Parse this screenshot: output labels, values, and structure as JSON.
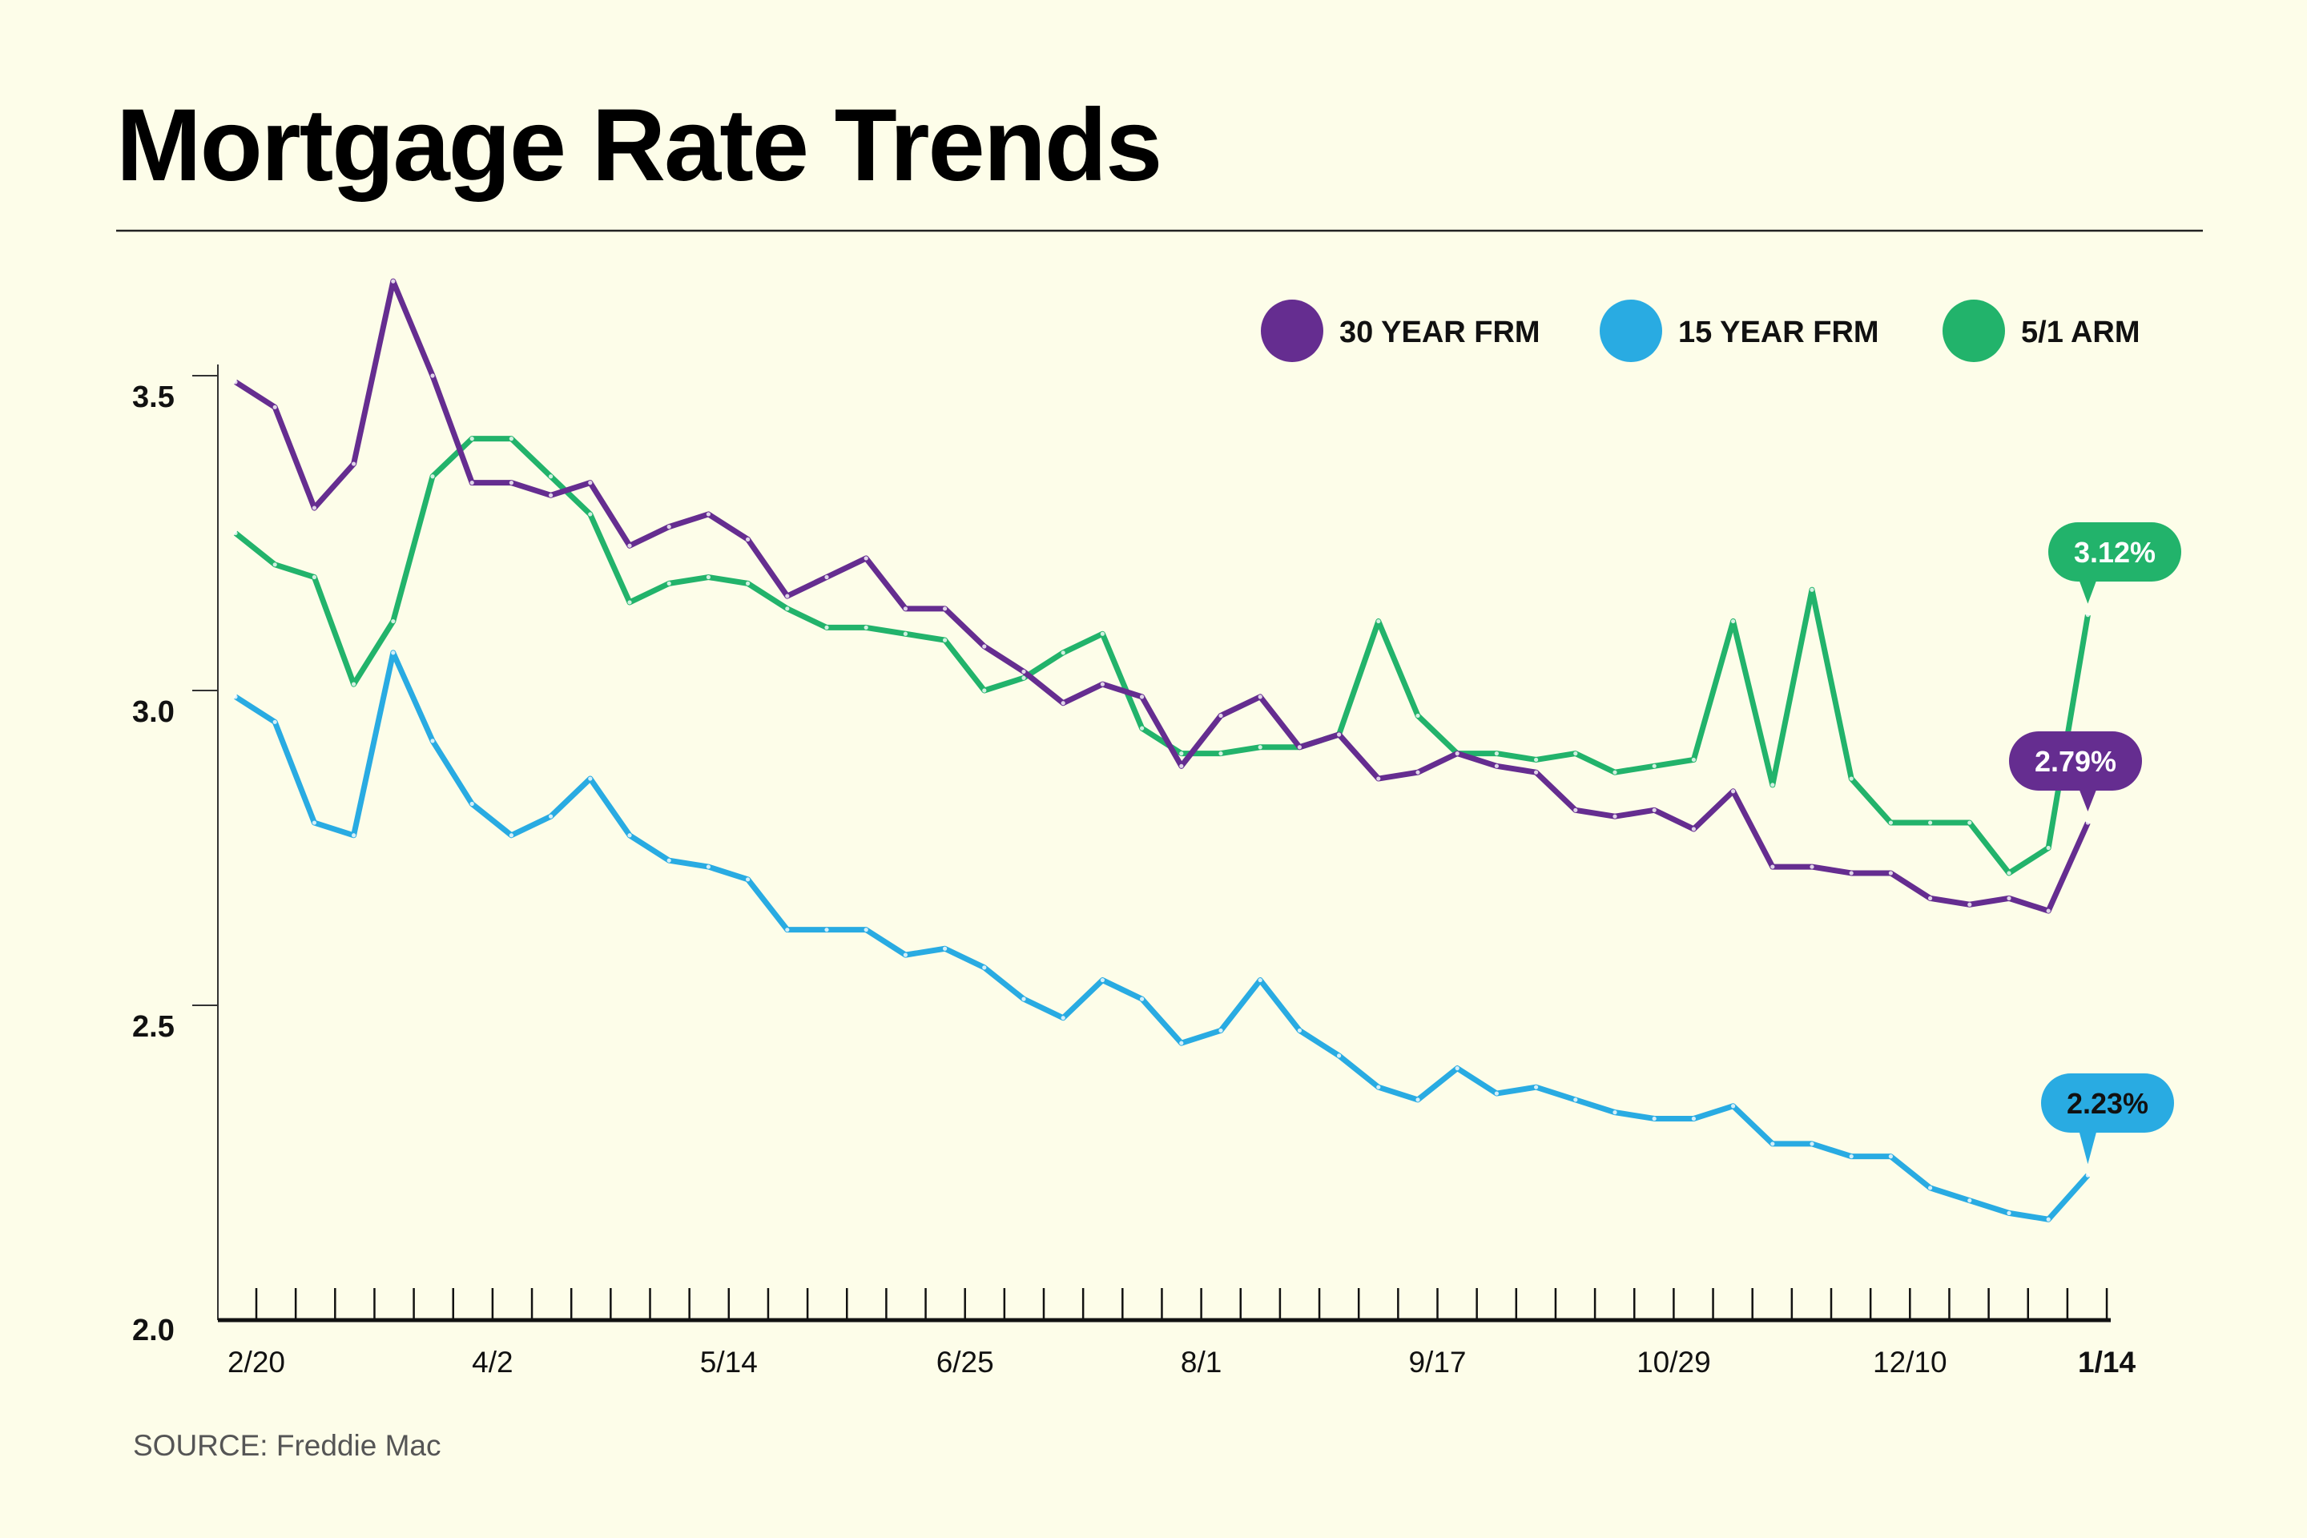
{
  "chart_data": {
    "type": "line",
    "title": "Mortgage Rate Trends",
    "source": "SOURCE: Freddie Mac",
    "xlabel": "",
    "ylabel": "",
    "ylim": [
      2.0,
      3.7
    ],
    "yticks": [
      "2.0",
      "2.5",
      "3.0",
      "3.5"
    ],
    "x_tick_labels": [
      {
        "label": "2/20",
        "week": 0
      },
      {
        "label": "4/2",
        "week": 6
      },
      {
        "label": "5/14",
        "week": 12
      },
      {
        "label": "6/25",
        "week": 18
      },
      {
        "label": "8/1",
        "week": 24
      },
      {
        "label": "9/17",
        "week": 30
      },
      {
        "label": "10/29",
        "week": 36
      },
      {
        "label": "12/10",
        "week": 42
      },
      {
        "label": "1/14",
        "week": 47
      }
    ],
    "legend_position": "top-right",
    "grid": false,
    "series": [
      {
        "name": "30 YEAR FRM",
        "color": "#652d90",
        "callout": "2.79%",
        "callout_text_color": "#ffffff",
        "values": [
          3.49,
          3.45,
          3.29,
          3.36,
          3.65,
          3.5,
          3.33,
          3.33,
          3.31,
          3.33,
          3.23,
          3.26,
          3.28,
          3.24,
          3.15,
          3.18,
          3.21,
          3.13,
          3.13,
          3.07,
          3.03,
          2.98,
          3.01,
          2.99,
          2.88,
          2.96,
          2.99,
          2.91,
          2.93,
          2.86,
          2.87,
          2.9,
          2.88,
          2.87,
          2.81,
          2.8,
          2.81,
          2.78,
          2.84,
          2.72,
          2.72,
          2.71,
          2.71,
          2.67,
          2.66,
          2.67,
          2.65,
          2.79
        ]
      },
      {
        "name": "15 YEAR FRM",
        "color": "#29abe2",
        "callout": "2.23%",
        "callout_text_color": "#111111",
        "values": [
          2.99,
          2.95,
          2.79,
          2.77,
          3.06,
          2.92,
          2.82,
          2.77,
          2.8,
          2.86,
          2.77,
          2.73,
          2.72,
          2.7,
          2.62,
          2.62,
          2.62,
          2.58,
          2.59,
          2.56,
          2.51,
          2.48,
          2.54,
          2.51,
          2.44,
          2.46,
          2.54,
          2.46,
          2.42,
          2.37,
          2.35,
          2.4,
          2.36,
          2.37,
          2.35,
          2.33,
          2.32,
          2.32,
          2.34,
          2.28,
          2.28,
          2.26,
          2.26,
          2.21,
          2.19,
          2.17,
          2.16,
          2.23
        ]
      },
      {
        "name": "5/1 ARM",
        "color": "#22b36b",
        "callout": "3.12%",
        "callout_text_color": "#ffffff",
        "values": [
          3.25,
          3.2,
          3.18,
          3.01,
          3.11,
          3.34,
          3.4,
          3.4,
          3.34,
          3.28,
          3.14,
          3.17,
          3.18,
          3.17,
          3.13,
          3.1,
          3.1,
          3.09,
          3.08,
          3.0,
          3.02,
          3.06,
          3.09,
          2.94,
          2.9,
          2.9,
          2.91,
          2.91,
          2.93,
          3.11,
          2.96,
          2.9,
          2.9,
          2.89,
          2.9,
          2.87,
          2.88,
          2.89,
          3.11,
          2.85,
          3.16,
          2.86,
          2.79,
          2.79,
          2.79,
          2.71,
          2.75,
          3.12
        ]
      }
    ]
  }
}
